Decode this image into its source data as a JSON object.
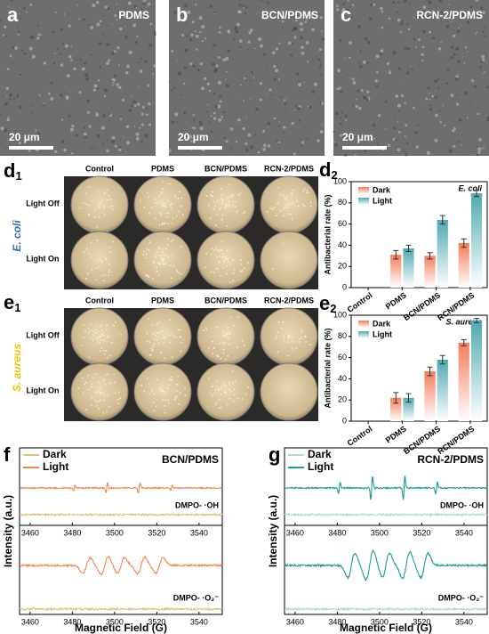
{
  "panels": {
    "a": {
      "label": "a",
      "title": "PDMS",
      "scale": "20 μm"
    },
    "b": {
      "label": "b",
      "title": "BCN/PDMS",
      "scale": "20 μm"
    },
    "c": {
      "label": "c",
      "title": "RCN-2/PDMS",
      "scale": "20 μm"
    }
  },
  "d1": {
    "label": "d",
    "sub": "1",
    "organism": "E. coli",
    "columns": [
      "Control",
      "PDMS",
      "BCN/PDMS",
      "RCN-2/PDMS"
    ],
    "rows": [
      "Light Off",
      "Light On"
    ]
  },
  "e1": {
    "label": "e",
    "sub": "1",
    "organism": "S. aureus",
    "columns": [
      "Control",
      "PDMS",
      "BCN/PDMS",
      "RCN-2/PDMS"
    ],
    "rows": [
      "Light Off",
      "Light On"
    ]
  },
  "chart_data": [
    {
      "type": "bar",
      "label": "d",
      "sub": "2",
      "annotation": "E. coli",
      "ylabel": "Antibacterial rate (%)",
      "categories": [
        "Control",
        "PDMS",
        "BCN/PDMS",
        "RCN/PDMS"
      ],
      "series": [
        {
          "name": "Dark",
          "color": "#f47c5a",
          "values": [
            null,
            31,
            30,
            42
          ],
          "errors": [
            null,
            4,
            3,
            4
          ]
        },
        {
          "name": "Light",
          "color": "#4fa9b0",
          "values": [
            null,
            37,
            64,
            89
          ],
          "errors": [
            null,
            3,
            4,
            3
          ]
        }
      ],
      "ylim": [
        0,
        100
      ],
      "yticks": [
        0,
        20,
        40,
        60,
        80,
        100
      ]
    },
    {
      "type": "bar",
      "label": "e",
      "sub": "2",
      "annotation": "S. aureus",
      "ylabel": "Antibacterial rate (%)",
      "categories": [
        "Control",
        "PDMS",
        "BCN/PDMS",
        "RCN/PDMS"
      ],
      "series": [
        {
          "name": "Dark",
          "color": "#f47c5a",
          "values": [
            null,
            22,
            47,
            74
          ],
          "errors": [
            null,
            5,
            4,
            3
          ]
        },
        {
          "name": "Light",
          "color": "#4fa9b0",
          "values": [
            null,
            22,
            58,
            95
          ],
          "errors": [
            null,
            4,
            4,
            2
          ]
        }
      ],
      "ylim": [
        0,
        100
      ],
      "yticks": [
        0,
        20,
        40,
        60,
        80,
        100
      ]
    },
    {
      "type": "line",
      "label": "f",
      "title": "BCN/PDMS",
      "xlabel": "Magnetic Field (G)",
      "ylabel": "Intensity (a.u.)",
      "annotations": [
        "DMPO- ·OH",
        "DMPO- ·O₂⁻"
      ],
      "series": [
        {
          "name": "Dark",
          "color": "#d9c47e"
        },
        {
          "name": "Light",
          "color": "#f2864a"
        }
      ],
      "xlim": [
        3455,
        3551
      ],
      "xticks": [
        3460,
        3480,
        3500,
        3520,
        3540
      ]
    },
    {
      "type": "line",
      "label": "g",
      "title": "RCN-2/PDMS",
      "xlabel": "Magnetic Field (G)",
      "ylabel": "Intensity (a.u.)",
      "annotations": [
        "DMPO- ·OH",
        "DMPO- ·O₂⁻"
      ],
      "series": [
        {
          "name": "Dark",
          "color": "#a9dcd7"
        },
        {
          "name": "Light",
          "color": "#1a9c94"
        }
      ],
      "xlim": [
        3455,
        3551
      ],
      "xticks": [
        3460,
        3480,
        3500,
        3520,
        3540
      ]
    }
  ]
}
